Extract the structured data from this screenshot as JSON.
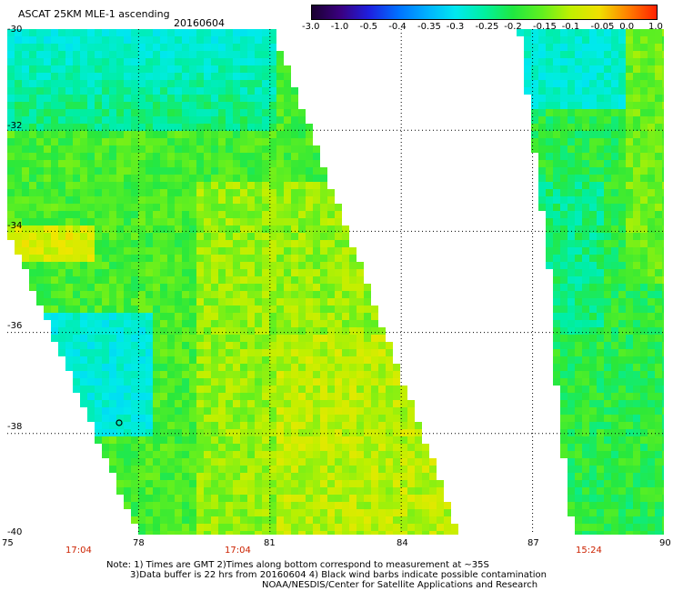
{
  "header": {
    "title": "ASCAT 25KM MLE-1 ascending",
    "date": "20160604"
  },
  "colorbar": {
    "labels": [
      "-3.0",
      "-1.0",
      "-0.5",
      "-0.4",
      "-0.35",
      "-0.3",
      "-0.25",
      "-0.2",
      "-0.15",
      "-0.1",
      "-0.05",
      "0.0",
      "1.0"
    ],
    "colors": [
      "#1a0030",
      "#3a0080",
      "#1e20e0",
      "#0070ff",
      "#00b0ff",
      "#00e8f0",
      "#00f0a0",
      "#20e840",
      "#60f020",
      "#c0f000",
      "#f0e000",
      "#ff8000",
      "#ff2000"
    ]
  },
  "map": {
    "lat_labels": [
      "-30",
      "-32",
      "-34",
      "-36",
      "-38",
      "-40"
    ],
    "lon_labels": [
      "75",
      "78",
      "81",
      "84",
      "87",
      "90"
    ],
    "lat_range": [
      -40,
      -30
    ],
    "lon_range": [
      75,
      90
    ],
    "grid": true,
    "times": [
      "17:04",
      "17:04",
      "15:24"
    ],
    "swaths": [
      {
        "name": "west",
        "approx_mean": -0.17
      },
      {
        "name": "east",
        "approx_mean": -0.19
      }
    ],
    "icons": [
      "wind-barb-icon"
    ]
  },
  "notes": {
    "line1": "Note: 1) Times are GMT 2)Times along bottom correspond to measurement at ~35S",
    "line2": "3)Data buffer is 22 hrs from 20160604 4) Black wind barbs indicate possible contamination",
    "line3": "NOAA/NESDIS/Center for Satellite Applications and Research"
  }
}
